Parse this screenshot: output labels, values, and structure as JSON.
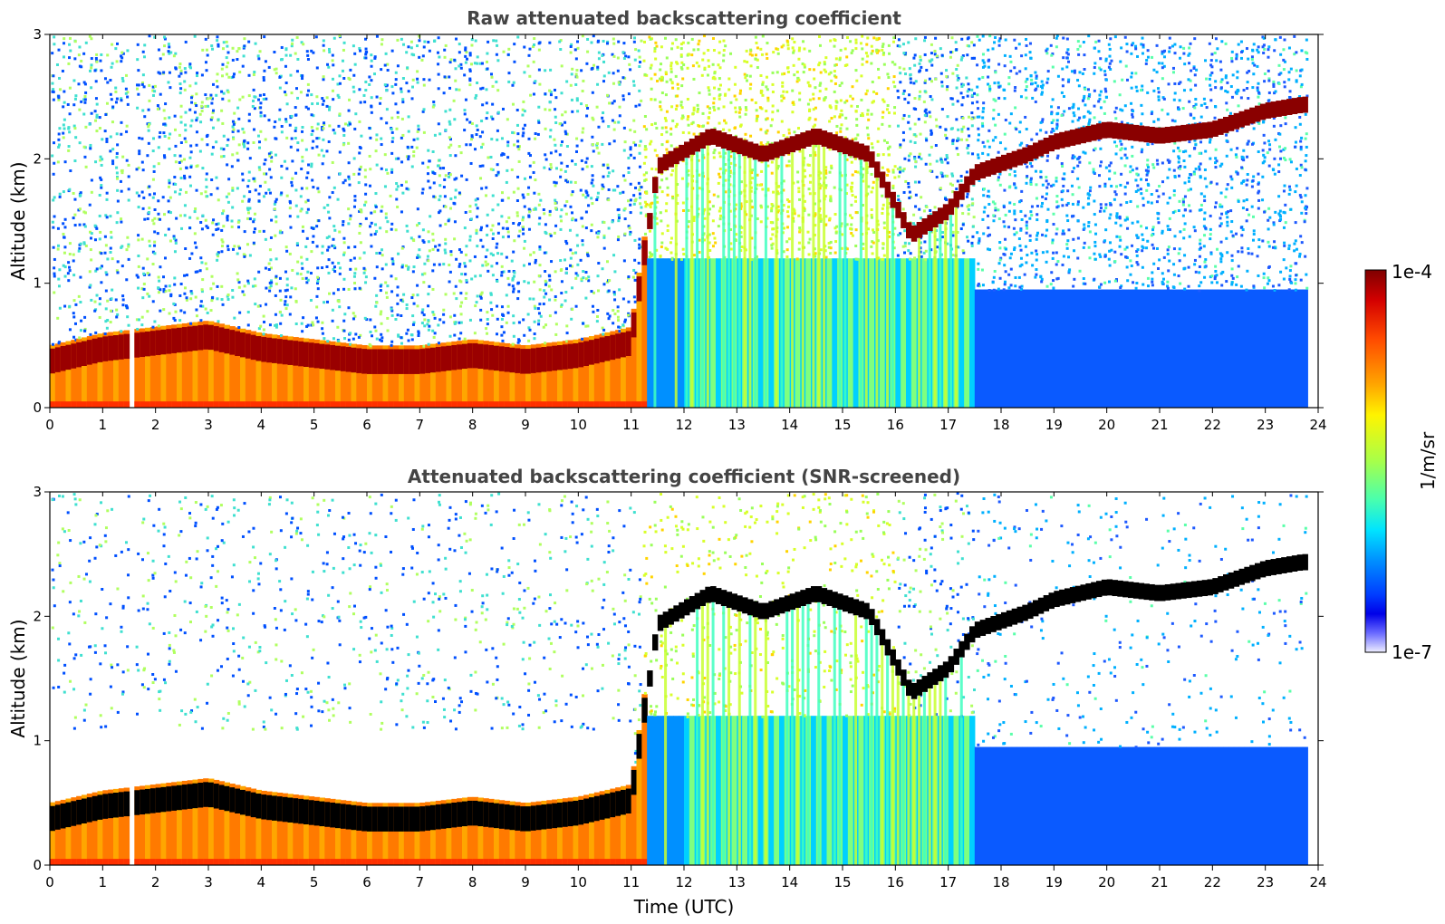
{
  "chart_data": [
    {
      "type": "heatmap",
      "title": "Raw attenuated backscattering coefficient",
      "xlabel": "",
      "ylabel": "Altitude (km)",
      "xlim": [
        0,
        24
      ],
      "ylim": [
        0,
        3
      ],
      "xticks": [
        "0",
        "1",
        "2",
        "3",
        "4",
        "5",
        "6",
        "7",
        "8",
        "9",
        "10",
        "11",
        "12",
        "13",
        "14",
        "15",
        "16",
        "17",
        "18",
        "19",
        "20",
        "21",
        "22",
        "23",
        "24"
      ],
      "yticks": [
        "0",
        "1",
        "2",
        "3"
      ],
      "colorscale": "jet",
      "cloud_layer_km": [
        {
          "t": 0,
          "z": 0.35
        },
        {
          "t": 1,
          "z": 0.45
        },
        {
          "t": 2,
          "z": 0.5
        },
        {
          "t": 3,
          "z": 0.55
        },
        {
          "t": 4,
          "z": 0.45
        },
        {
          "t": 5,
          "z": 0.4
        },
        {
          "t": 6,
          "z": 0.35
        },
        {
          "t": 7,
          "z": 0.35
        },
        {
          "t": 8,
          "z": 0.4
        },
        {
          "t": 9,
          "z": 0.35
        },
        {
          "t": 10,
          "z": 0.4
        },
        {
          "t": 11,
          "z": 0.5
        },
        {
          "t": 11.5,
          "z": 1.95
        },
        {
          "t": 12.5,
          "z": 2.2
        },
        {
          "t": 13.5,
          "z": 2.05
        },
        {
          "t": 14.5,
          "z": 2.2
        },
        {
          "t": 15.5,
          "z": 2.05
        },
        {
          "t": 16.3,
          "z": 1.4
        },
        {
          "t": 17,
          "z": 1.6
        },
        {
          "t": 17.5,
          "z": 1.9
        },
        {
          "t": 18.5,
          "z": 2.05
        },
        {
          "t": 19,
          "z": 2.15
        },
        {
          "t": 20,
          "z": 2.25
        },
        {
          "t": 21,
          "z": 2.2
        },
        {
          "t": 22,
          "z": 2.25
        },
        {
          "t": 23,
          "z": 2.4
        },
        {
          "t": 23.7,
          "z": 2.45
        }
      ]
    },
    {
      "type": "heatmap",
      "title": "Attenuated backscattering coefficient (SNR-screened)",
      "xlabel": "Time (UTC)",
      "ylabel": "Altitude (km)",
      "xlim": [
        0,
        24
      ],
      "ylim": [
        0,
        3
      ],
      "xticks": [
        "0",
        "1",
        "2",
        "3",
        "4",
        "5",
        "6",
        "7",
        "8",
        "9",
        "10",
        "11",
        "12",
        "13",
        "14",
        "15",
        "16",
        "17",
        "18",
        "19",
        "20",
        "21",
        "22",
        "23",
        "24"
      ],
      "yticks": [
        "0",
        "1",
        "2",
        "3"
      ],
      "colorscale": "jet",
      "cloud_layer_km": [
        {
          "t": 0,
          "z": 0.35
        },
        {
          "t": 1,
          "z": 0.45
        },
        {
          "t": 2,
          "z": 0.5
        },
        {
          "t": 3,
          "z": 0.55
        },
        {
          "t": 4,
          "z": 0.45
        },
        {
          "t": 5,
          "z": 0.4
        },
        {
          "t": 6,
          "z": 0.35
        },
        {
          "t": 7,
          "z": 0.35
        },
        {
          "t": 8,
          "z": 0.4
        },
        {
          "t": 9,
          "z": 0.35
        },
        {
          "t": 10,
          "z": 0.4
        },
        {
          "t": 11,
          "z": 0.5
        },
        {
          "t": 11.5,
          "z": 1.95
        },
        {
          "t": 12.5,
          "z": 2.2
        },
        {
          "t": 13.5,
          "z": 2.05
        },
        {
          "t": 14.5,
          "z": 2.2
        },
        {
          "t": 15.5,
          "z": 2.05
        },
        {
          "t": 16.3,
          "z": 1.4
        },
        {
          "t": 17,
          "z": 1.6
        },
        {
          "t": 17.5,
          "z": 1.9
        },
        {
          "t": 18.5,
          "z": 2.05
        },
        {
          "t": 19,
          "z": 2.15
        },
        {
          "t": 20,
          "z": 2.25
        },
        {
          "t": 21,
          "z": 2.2
        },
        {
          "t": 22,
          "z": 2.25
        },
        {
          "t": 23,
          "z": 2.4
        },
        {
          "t": 23.7,
          "z": 2.45
        }
      ]
    }
  ],
  "colorbar": {
    "max_label": "1e-4",
    "min_label": "1e-7",
    "label": "1/m/sr",
    "colors": [
      "#7f0000",
      "#d40000",
      "#ff4a00",
      "#ffa600",
      "#fff400",
      "#a7ff4a",
      "#4affad",
      "#00e4ff",
      "#0090ff",
      "#003cff",
      "#0000e8",
      "#6a6aff",
      "#c8c8ff",
      "#eeeeff"
    ]
  }
}
